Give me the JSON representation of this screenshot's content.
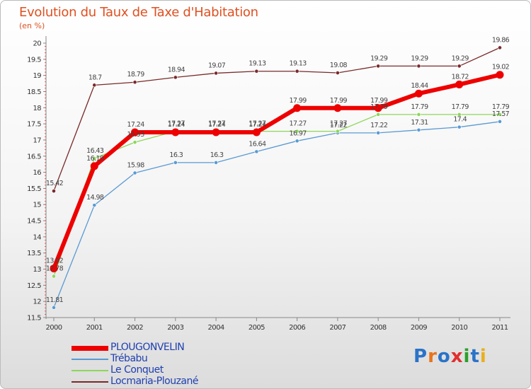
{
  "title": "Evolution du Taux de Taxe d'Habitation",
  "subtitle": "(en %)",
  "logo": {
    "text": "Proxiti",
    "colors": [
      "#2a73c8",
      "#e8741c",
      "#2a73c8",
      "#e03030",
      "#2aa02a",
      "#2a73c8",
      "#e8b01c"
    ]
  },
  "chart_data": {
    "type": "line",
    "x": [
      "2000",
      "2001",
      "2002",
      "2003",
      "2004",
      "2005",
      "2006",
      "2007",
      "2008",
      "2009",
      "2010",
      "2011"
    ],
    "ylim": [
      11.5,
      20
    ],
    "yticks": [
      "11.5",
      "12",
      "12.5",
      "13",
      "13.5",
      "14",
      "14.5",
      "15",
      "15.5",
      "16",
      "16.5",
      "17",
      "17.5",
      "18",
      "18.5",
      "19",
      "19.5",
      "20"
    ],
    "grid": false,
    "legend_position": "bottom-left",
    "series": [
      {
        "name": "PLOUGONVELIN",
        "color": "#ee0000",
        "values": [
          13.02,
          16.19,
          17.24,
          17.24,
          17.24,
          17.24,
          17.99,
          17.99,
          17.99,
          18.44,
          18.72,
          19.02
        ],
        "labels": [
          "13.02",
          "16.19",
          "17.24",
          "17.24",
          "17.24",
          "17.24",
          "17.99",
          "17.99",
          "17.99",
          "18.44",
          "18.72",
          "19.02"
        ]
      },
      {
        "name": "Trébabu",
        "color": "#5a9ad2",
        "values": [
          11.81,
          14.98,
          15.98,
          16.3,
          16.3,
          16.64,
          16.97,
          17.22,
          17.22,
          17.31,
          17.4,
          17.57
        ],
        "labels": [
          "11.81",
          "14.98",
          "15.98",
          "16.3",
          "16.3",
          "16.64",
          "16.97",
          "17.22",
          "17.22",
          "17.31",
          "17.4",
          "17.57"
        ]
      },
      {
        "name": "Le Conquet",
        "color": "#8ed65a",
        "values": [
          12.78,
          16.43,
          16.93,
          17.27,
          17.27,
          17.27,
          17.27,
          17.27,
          17.79,
          17.79,
          17.79,
          17.79
        ],
        "labels": [
          "12.78",
          "16.43",
          "16.93",
          "17.27",
          "17.27",
          "17.27",
          "17.27",
          "17.27",
          "17.79",
          "17.79",
          "17.79",
          "17.79"
        ]
      },
      {
        "name": "Locmaria-Plouzané",
        "color": "#7a2a2a",
        "values": [
          15.42,
          18.7,
          18.79,
          18.94,
          19.07,
          19.13,
          19.13,
          19.08,
          19.29,
          19.29,
          19.29,
          19.86
        ],
        "labels": [
          "15.42",
          "18.7",
          "18.79",
          "18.94",
          "19.07",
          "19.13",
          "19.13",
          "19.08",
          "19.29",
          "19.29",
          "19.29",
          "19.86"
        ]
      }
    ]
  }
}
